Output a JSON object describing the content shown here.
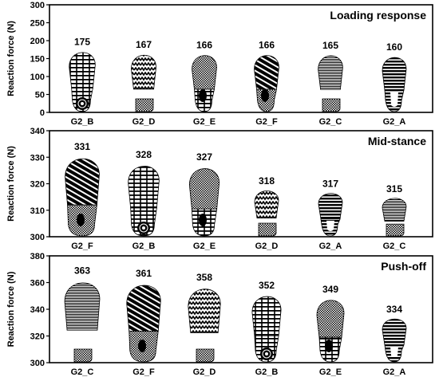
{
  "colors": {
    "ink": "#000000",
    "paper": "#ffffff",
    "frame": "#000000"
  },
  "chart_data": [
    {
      "type": "bar",
      "title": "Loading response",
      "ylabel": "Reaction force (N)",
      "ylim": [
        0,
        300
      ],
      "yticks": [
        0,
        50,
        100,
        150,
        200,
        250,
        300
      ],
      "categories": [
        "G2_B",
        "G2_D",
        "G2_E",
        "G2_F",
        "G2_C",
        "G2_A"
      ],
      "values": [
        175,
        167,
        166,
        166,
        165,
        160
      ],
      "data_labels": [
        "175",
        "167",
        "166",
        "166",
        "165",
        "160"
      ],
      "grid": false,
      "legend": "none"
    },
    {
      "type": "bar",
      "title": "Mid-stance",
      "ylabel": "Reaction force (N)",
      "ylim": [
        300,
        340
      ],
      "yticks": [
        300,
        310,
        320,
        330,
        340
      ],
      "categories": [
        "G2_F",
        "G2_B",
        "G2_E",
        "G2_D",
        "G2_A",
        "G2_C"
      ],
      "values": [
        331,
        328,
        327,
        318,
        317,
        315
      ],
      "data_labels": [
        "331",
        "328",
        "327",
        "318",
        "317",
        "315"
      ],
      "grid": false,
      "legend": "none"
    },
    {
      "type": "bar",
      "title": "Push-off",
      "ylabel": "Reaction force (N)",
      "ylim": [
        300,
        380
      ],
      "yticks": [
        300,
        320,
        340,
        360,
        380
      ],
      "categories": [
        "G2_C",
        "G2_F",
        "G2_D",
        "G2_B",
        "G2_E",
        "G2_A"
      ],
      "values": [
        363,
        361,
        358,
        352,
        349,
        334
      ],
      "data_labels": [
        "363",
        "361",
        "358",
        "352",
        "349",
        "334"
      ],
      "grid": false,
      "legend": "none"
    }
  ]
}
